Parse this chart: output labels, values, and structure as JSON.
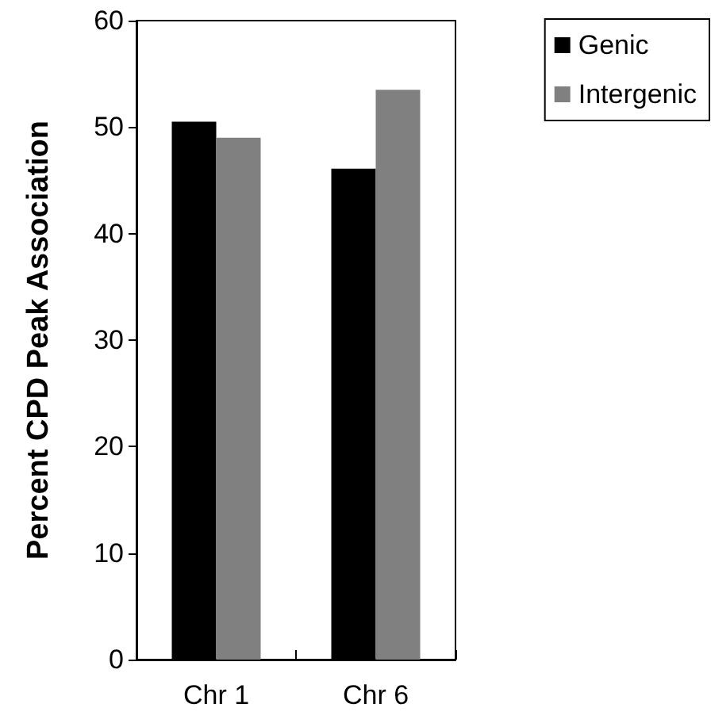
{
  "chart_data": {
    "type": "bar",
    "ylabel": "Percent CPD Peak Association",
    "categories": [
      "Chr 1",
      "Chr 6"
    ],
    "series": [
      {
        "name": "Genic",
        "color": "#000000",
        "values": [
          50.5,
          46.1
        ]
      },
      {
        "name": "Intergenic",
        "color": "#808080",
        "values": [
          49.0,
          53.5
        ]
      }
    ],
    "ylim": [
      0,
      60
    ],
    "yticks": [
      0,
      10,
      20,
      30,
      40,
      50,
      60
    ],
    "grid": false,
    "legend": "top right"
  }
}
